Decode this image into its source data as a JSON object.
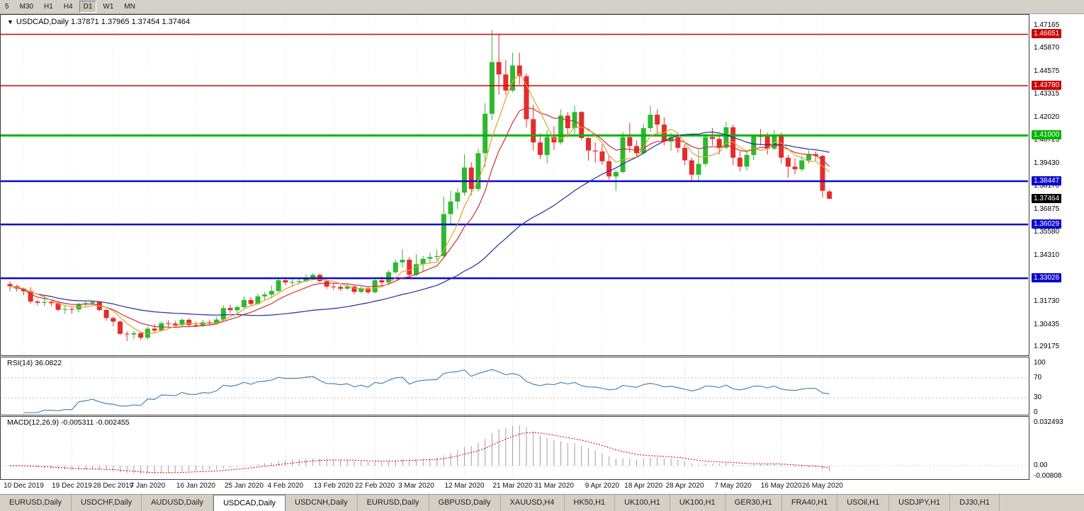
{
  "toolbar": {
    "timeframes": [
      "5",
      "M30",
      "H1",
      "H4",
      "D1",
      "W1",
      "MN"
    ],
    "active": "D1"
  },
  "chart_data": {
    "type": "candlestick",
    "symbol_period": "USDCAD,Daily",
    "dropdown_arrow": "▼",
    "ohlc_text": "1.37871 1.37965 1.37454 1.37464",
    "current_price": 1.37464,
    "current_price_label": "1.37464",
    "price_axis": {
      "min": 1.29175,
      "max": 1.47165,
      "ticks": [
        "1.47165",
        "1.45870",
        "1.44575",
        "1.43315",
        "1.42020",
        "1.40725",
        "1.39430",
        "1.38170",
        "1.36875",
        "1.35580",
        "1.34310",
        "1.31730",
        "1.30435",
        "1.29175"
      ]
    },
    "hlines": [
      {
        "price": "1.46651",
        "kind": "red"
      },
      {
        "price": "1.43780",
        "kind": "red"
      },
      {
        "price": "1.41000",
        "kind": "green"
      },
      {
        "price": "1.38447",
        "kind": "blue"
      },
      {
        "price": "1.36029",
        "kind": "blue"
      },
      {
        "price": "1.33026",
        "kind": "blue"
      }
    ],
    "x_axis": {
      "labels": [
        {
          "text": "10 Dec 2019",
          "index": 2
        },
        {
          "text": "19 Dec 2019",
          "index": 9
        },
        {
          "text": "28 Dec 2019",
          "index": 15
        },
        {
          "text": "7 Jan 2020",
          "index": 20
        },
        {
          "text": "16 Jan 2020",
          "index": 27
        },
        {
          "text": "25 Jan 2020",
          "index": 34
        },
        {
          "text": "4 Feb 2020",
          "index": 40
        },
        {
          "text": "13 Feb 2020",
          "index": 47
        },
        {
          "text": "22 Feb 2020",
          "index": 53
        },
        {
          "text": "3 Mar 2020",
          "index": 59
        },
        {
          "text": "12 Mar 2020",
          "index": 66
        },
        {
          "text": "21 Mar 2020",
          "index": 73
        },
        {
          "text": "31 Mar 2020",
          "index": 79
        },
        {
          "text": "9 Apr 2020",
          "index": 86
        },
        {
          "text": "18 Apr 2020",
          "index": 92
        },
        {
          "text": "28 Apr 2020",
          "index": 98
        },
        {
          "text": "7 May 2020",
          "index": 105
        },
        {
          "text": "16 May 2020",
          "index": 112
        },
        {
          "text": "26 May 2020",
          "index": 118
        }
      ]
    },
    "candles": [
      [
        1.327,
        1.3285,
        1.3232,
        1.3258
      ],
      [
        1.3258,
        1.3266,
        1.3228,
        1.3245
      ],
      [
        1.3245,
        1.325,
        1.3208,
        1.323
      ],
      [
        1.323,
        1.3252,
        1.316,
        1.3172
      ],
      [
        1.3172,
        1.3182,
        1.3151,
        1.3165
      ],
      [
        1.3165,
        1.3208,
        1.3148,
        1.317
      ],
      [
        1.317,
        1.3186,
        1.3145,
        1.3163
      ],
      [
        1.3163,
        1.3175,
        1.3118,
        1.3126
      ],
      [
        1.3126,
        1.3151,
        1.3103,
        1.313
      ],
      [
        1.313,
        1.3142,
        1.3105,
        1.3128
      ],
      [
        1.3128,
        1.3165,
        1.3112,
        1.3158
      ],
      [
        1.3158,
        1.318,
        1.3145,
        1.3163
      ],
      [
        1.3163,
        1.3175,
        1.3152,
        1.317
      ],
      [
        1.317,
        1.3172,
        1.3118,
        1.3125
      ],
      [
        1.3125,
        1.3131,
        1.3065,
        1.308
      ],
      [
        1.308,
        1.3088,
        1.3035,
        1.306
      ],
      [
        1.306,
        1.3066,
        1.2985,
        1.2992
      ],
      [
        1.2992,
        1.3006,
        1.2952,
        1.2988
      ],
      [
        1.2988,
        1.301,
        1.2962,
        1.2996
      ],
      [
        1.2996,
        1.3004,
        1.2957,
        1.297
      ],
      [
        1.297,
        1.3031,
        1.296,
        1.3021
      ],
      [
        1.3021,
        1.3046,
        1.2994,
        1.301
      ],
      [
        1.301,
        1.3061,
        1.3004,
        1.3051
      ],
      [
        1.3051,
        1.3068,
        1.3029,
        1.3049
      ],
      [
        1.3049,
        1.3064,
        1.3031,
        1.304
      ],
      [
        1.304,
        1.3079,
        1.3028,
        1.307
      ],
      [
        1.307,
        1.3078,
        1.3033,
        1.3041
      ],
      [
        1.3041,
        1.306,
        1.3029,
        1.3039
      ],
      [
        1.3039,
        1.307,
        1.3031,
        1.3056
      ],
      [
        1.3056,
        1.3069,
        1.3038,
        1.3049
      ],
      [
        1.3049,
        1.3086,
        1.3043,
        1.3071
      ],
      [
        1.3071,
        1.3151,
        1.3064,
        1.3136
      ],
      [
        1.3136,
        1.3155,
        1.3108,
        1.3124
      ],
      [
        1.3124,
        1.3151,
        1.3103,
        1.3141
      ],
      [
        1.3141,
        1.3201,
        1.3134,
        1.3181
      ],
      [
        1.3181,
        1.3196,
        1.3148,
        1.3159
      ],
      [
        1.3159,
        1.3216,
        1.3152,
        1.3201
      ],
      [
        1.3201,
        1.3226,
        1.3178,
        1.3211
      ],
      [
        1.3211,
        1.3261,
        1.3189,
        1.3231
      ],
      [
        1.3231,
        1.3306,
        1.3224,
        1.3291
      ],
      [
        1.3291,
        1.3301,
        1.3263,
        1.3279
      ],
      [
        1.3279,
        1.33,
        1.3254,
        1.3281
      ],
      [
        1.3281,
        1.3301,
        1.3268,
        1.3286
      ],
      [
        1.3286,
        1.3326,
        1.3279,
        1.3306
      ],
      [
        1.3306,
        1.3331,
        1.3294,
        1.3321
      ],
      [
        1.3321,
        1.3329,
        1.3278,
        1.3286
      ],
      [
        1.3286,
        1.3291,
        1.3243,
        1.3256
      ],
      [
        1.3256,
        1.3276,
        1.3238,
        1.3254
      ],
      [
        1.3254,
        1.3266,
        1.3232,
        1.3244
      ],
      [
        1.3244,
        1.3271,
        1.3238,
        1.3256
      ],
      [
        1.3256,
        1.3261,
        1.3213,
        1.3226
      ],
      [
        1.3226,
        1.3256,
        1.3219,
        1.3246
      ],
      [
        1.3246,
        1.3256,
        1.3213,
        1.3224
      ],
      [
        1.3224,
        1.3306,
        1.3218,
        1.3291
      ],
      [
        1.3291,
        1.3311,
        1.3262,
        1.3279
      ],
      [
        1.3279,
        1.3346,
        1.3268,
        1.3336
      ],
      [
        1.3336,
        1.3406,
        1.3328,
        1.3391
      ],
      [
        1.3391,
        1.3464,
        1.3363,
        1.3406
      ],
      [
        1.3406,
        1.3421,
        1.3303,
        1.3321
      ],
      [
        1.3321,
        1.3436,
        1.3314,
        1.3381
      ],
      [
        1.3381,
        1.3426,
        1.3339,
        1.3411
      ],
      [
        1.3411,
        1.3446,
        1.3388,
        1.3421
      ],
      [
        1.3421,
        1.3461,
        1.3399,
        1.3426
      ],
      [
        1.3426,
        1.3758,
        1.3418,
        1.3661
      ],
      [
        1.3661,
        1.3791,
        1.3601,
        1.3731
      ],
      [
        1.3731,
        1.3806,
        1.3689,
        1.3781
      ],
      [
        1.3781,
        1.3996,
        1.3764,
        1.3921
      ],
      [
        1.3921,
        1.3951,
        1.3766,
        1.3801
      ],
      [
        1.3801,
        1.4026,
        1.3788,
        1.4001
      ],
      [
        1.4001,
        1.4281,
        1.3924,
        1.4221
      ],
      [
        1.4221,
        1.4689,
        1.4184,
        1.451
      ],
      [
        1.451,
        1.4668,
        1.4329,
        1.4441
      ],
      [
        1.4441,
        1.4521,
        1.4328,
        1.4351
      ],
      [
        1.4351,
        1.4561,
        1.4341,
        1.4491
      ],
      [
        1.4491,
        1.4562,
        1.4384,
        1.4431
      ],
      [
        1.4431,
        1.4446,
        1.4144,
        1.4191
      ],
      [
        1.4191,
        1.4271,
        1.4014,
        1.4061
      ],
      [
        1.4061,
        1.4111,
        1.3969,
        1.3991
      ],
      [
        1.3991,
        1.4131,
        1.3944,
        1.4091
      ],
      [
        1.4091,
        1.4151,
        1.4019,
        1.4061
      ],
      [
        1.4061,
        1.4246,
        1.4049,
        1.4211
      ],
      [
        1.4211,
        1.4231,
        1.4089,
        1.4141
      ],
      [
        1.4141,
        1.4266,
        1.4109,
        1.4231
      ],
      [
        1.4231,
        1.4236,
        1.4074,
        1.4086
      ],
      [
        1.4086,
        1.4091,
        1.3959,
        1.4016
      ],
      [
        1.4016,
        1.4061,
        1.3949,
        1.4011
      ],
      [
        1.4011,
        1.4051,
        1.3934,
        1.3956
      ],
      [
        1.3956,
        1.3986,
        1.3854,
        1.3871
      ],
      [
        1.3871,
        1.3906,
        1.3789,
        1.3896
      ],
      [
        1.3896,
        1.4121,
        1.3889,
        1.4091
      ],
      [
        1.4091,
        1.4171,
        1.4004,
        1.4041
      ],
      [
        1.4041,
        1.4071,
        1.3984,
        1.4001
      ],
      [
        1.4001,
        1.4166,
        1.3994,
        1.4141
      ],
      [
        1.4141,
        1.4266,
        1.4119,
        1.4216
      ],
      [
        1.4216,
        1.4246,
        1.4109,
        1.4161
      ],
      [
        1.4161,
        1.4201,
        1.4044,
        1.4066
      ],
      [
        1.4066,
        1.4116,
        1.4014,
        1.4091
      ],
      [
        1.4091,
        1.4106,
        1.4004,
        1.4031
      ],
      [
        1.4031,
        1.4051,
        1.3934,
        1.3961
      ],
      [
        1.3961,
        1.3976,
        1.3849,
        1.3881
      ],
      [
        1.3881,
        1.4021,
        1.3844,
        1.3941
      ],
      [
        1.3941,
        1.4111,
        1.3929,
        1.4091
      ],
      [
        1.4091,
        1.4141,
        1.4044,
        1.4081
      ],
      [
        1.4081,
        1.4106,
        1.3994,
        1.4031
      ],
      [
        1.4031,
        1.4176,
        1.4024,
        1.4146
      ],
      [
        1.4146,
        1.4161,
        1.3934,
        1.3976
      ],
      [
        1.3976,
        1.4011,
        1.3899,
        1.3926
      ],
      [
        1.3926,
        1.4011,
        1.3904,
        1.3991
      ],
      [
        1.3991,
        1.4106,
        1.3964,
        1.4096
      ],
      [
        1.4096,
        1.4136,
        1.4044,
        1.4094
      ],
      [
        1.4094,
        1.4116,
        1.3994,
        1.4026
      ],
      [
        1.4026,
        1.4131,
        1.4019,
        1.4106
      ],
      [
        1.4106,
        1.4116,
        1.3944,
        1.3976
      ],
      [
        1.3976,
        1.3991,
        1.3864,
        1.3926
      ],
      [
        1.3926,
        1.3971,
        1.3884,
        1.3911
      ],
      [
        1.3911,
        1.3986,
        1.3899,
        1.3961
      ],
      [
        1.3961,
        1.4016,
        1.3944,
        1.3996
      ],
      [
        1.3996,
        1.4011,
        1.3959,
        1.3986
      ],
      [
        1.3986,
        1.3991,
        1.3754,
        1.3791
      ],
      [
        1.37871,
        1.37965,
        1.37454,
        1.37464
      ]
    ],
    "moving_averages": [
      {
        "name": "ma-slow",
        "method": "sma",
        "period": 34,
        "color": "#262D9C"
      },
      {
        "name": "ma-mid",
        "method": "lwma",
        "period": 13,
        "color": "#D03030"
      },
      {
        "name": "ma-fast",
        "method": "sma",
        "period": 5,
        "color": "#DFA32E"
      }
    ],
    "rsi": {
      "label": "RSI(14)",
      "value": "36.0822",
      "period": 14,
      "axis": [
        "100",
        "70",
        "30",
        "0"
      ],
      "levels": [
        70,
        30
      ],
      "color": "#3E7CAD"
    },
    "macd": {
      "label": "MACD(12,26,9)",
      "values": "-0.005311 -0.002455",
      "fast": 12,
      "slow": 26,
      "signal_period": 9,
      "axis": [
        {
          "text": "0.032493",
          "value": 0.032493
        },
        {
          "text": "0.00",
          "value": 0
        },
        {
          "text": "-0.00808",
          "value": -0.00808
        }
      ],
      "hist_color": "#9E9E9E",
      "signal_color": "#C80000"
    },
    "colors": {
      "bull": "#2EB82E",
      "bear": "#E52B2B",
      "grid_main": "#E4E4E4",
      "grid_panel": "#CCCCCC",
      "hline_red": "#CC0404",
      "hline_green": "#00B400",
      "hline_blue": "#0A0ACA",
      "current_bg": "#000000"
    }
  },
  "tabs": [
    {
      "label": "EURUSD,Daily"
    },
    {
      "label": "USDCHF,Daily"
    },
    {
      "label": "AUDUSD,Daily"
    },
    {
      "label": "USDCAD,Daily",
      "active": true
    },
    {
      "label": "USDCNH,Daily"
    },
    {
      "label": "EURUSD,Daily"
    },
    {
      "label": "GBPUSD,Daily"
    },
    {
      "label": "XAUUSD,H4"
    },
    {
      "label": "HK50,H1"
    },
    {
      "label": "UK100,H1"
    },
    {
      "label": "UK100,H1"
    },
    {
      "label": "GER30,H1"
    },
    {
      "label": "FRA40,H1"
    },
    {
      "label": "USOil,H1"
    },
    {
      "label": "USDJPY,H1"
    },
    {
      "label": "DJ30,H1"
    }
  ]
}
